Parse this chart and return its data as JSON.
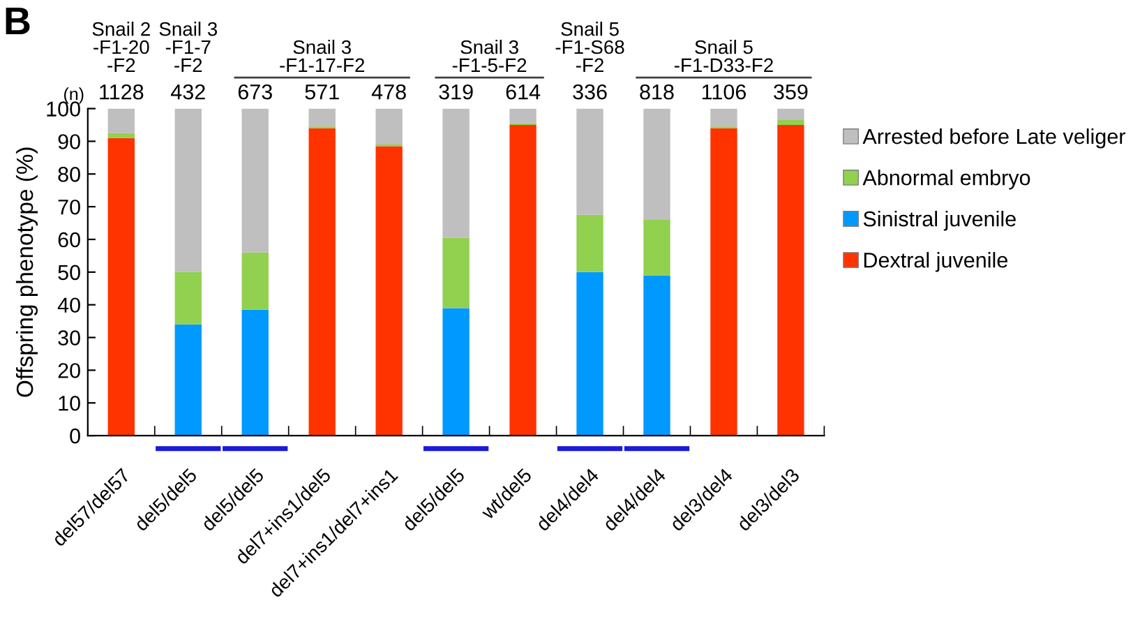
{
  "chart_data": {
    "type": "bar",
    "stacked": true,
    "ylabel": "Offspring phenotype (%)",
    "categories": [
      "del57/del57",
      "del5/del5",
      "del5/del5",
      "del7+ins1/del5",
      "del7+ins1/del7+ins1",
      "del5/del5",
      "wt/del5",
      "del4/del4",
      "del4/del4",
      "del3/del4",
      "del3/del3"
    ],
    "series": [
      {
        "name": "Dextral juvenile",
        "color": "#ff3300",
        "values": [
          91,
          0,
          0,
          94,
          88.5,
          0,
          95,
          0,
          0,
          94,
          95
        ]
      },
      {
        "name": "Sinistral juvenile",
        "color": "#0099ff",
        "values": [
          0,
          34,
          38.5,
          0,
          0,
          39,
          0,
          50,
          49,
          0,
          0
        ]
      },
      {
        "name": "Abnormal embryo",
        "color": "#92d050",
        "values": [
          1.5,
          16,
          17.5,
          0.5,
          0.5,
          21.5,
          0.5,
          17.5,
          17,
          0.5,
          1.5
        ]
      },
      {
        "name": "Arrested before Late veliger",
        "color": "#bfbfbf",
        "values": [
          7.5,
          50,
          44,
          5.5,
          11,
          39.5,
          4.5,
          32.5,
          34,
          5.5,
          3.5
        ]
      }
    ],
    "ylim": [
      0,
      100
    ],
    "yticks": [
      0,
      10,
      20,
      30,
      40,
      50,
      60,
      70,
      80,
      90,
      100
    ],
    "legend": "right",
    "grid": false,
    "annotations": [
      "B",
      "Snail 2\n-F1-20\n-F2",
      "Snail 3\n-F1-7\n-F2",
      "Snail 3\n-F1-17-F2",
      "Snail 3\n-F1-5-F2",
      "Snail 5\n-F1-S68\n-F2",
      "Snail 5\n-F1-D33-F2",
      "(n)",
      "1128",
      "432",
      "673",
      "571",
      "478",
      "319",
      "614",
      "336",
      "818",
      "1106",
      "359"
    ]
  }
}
